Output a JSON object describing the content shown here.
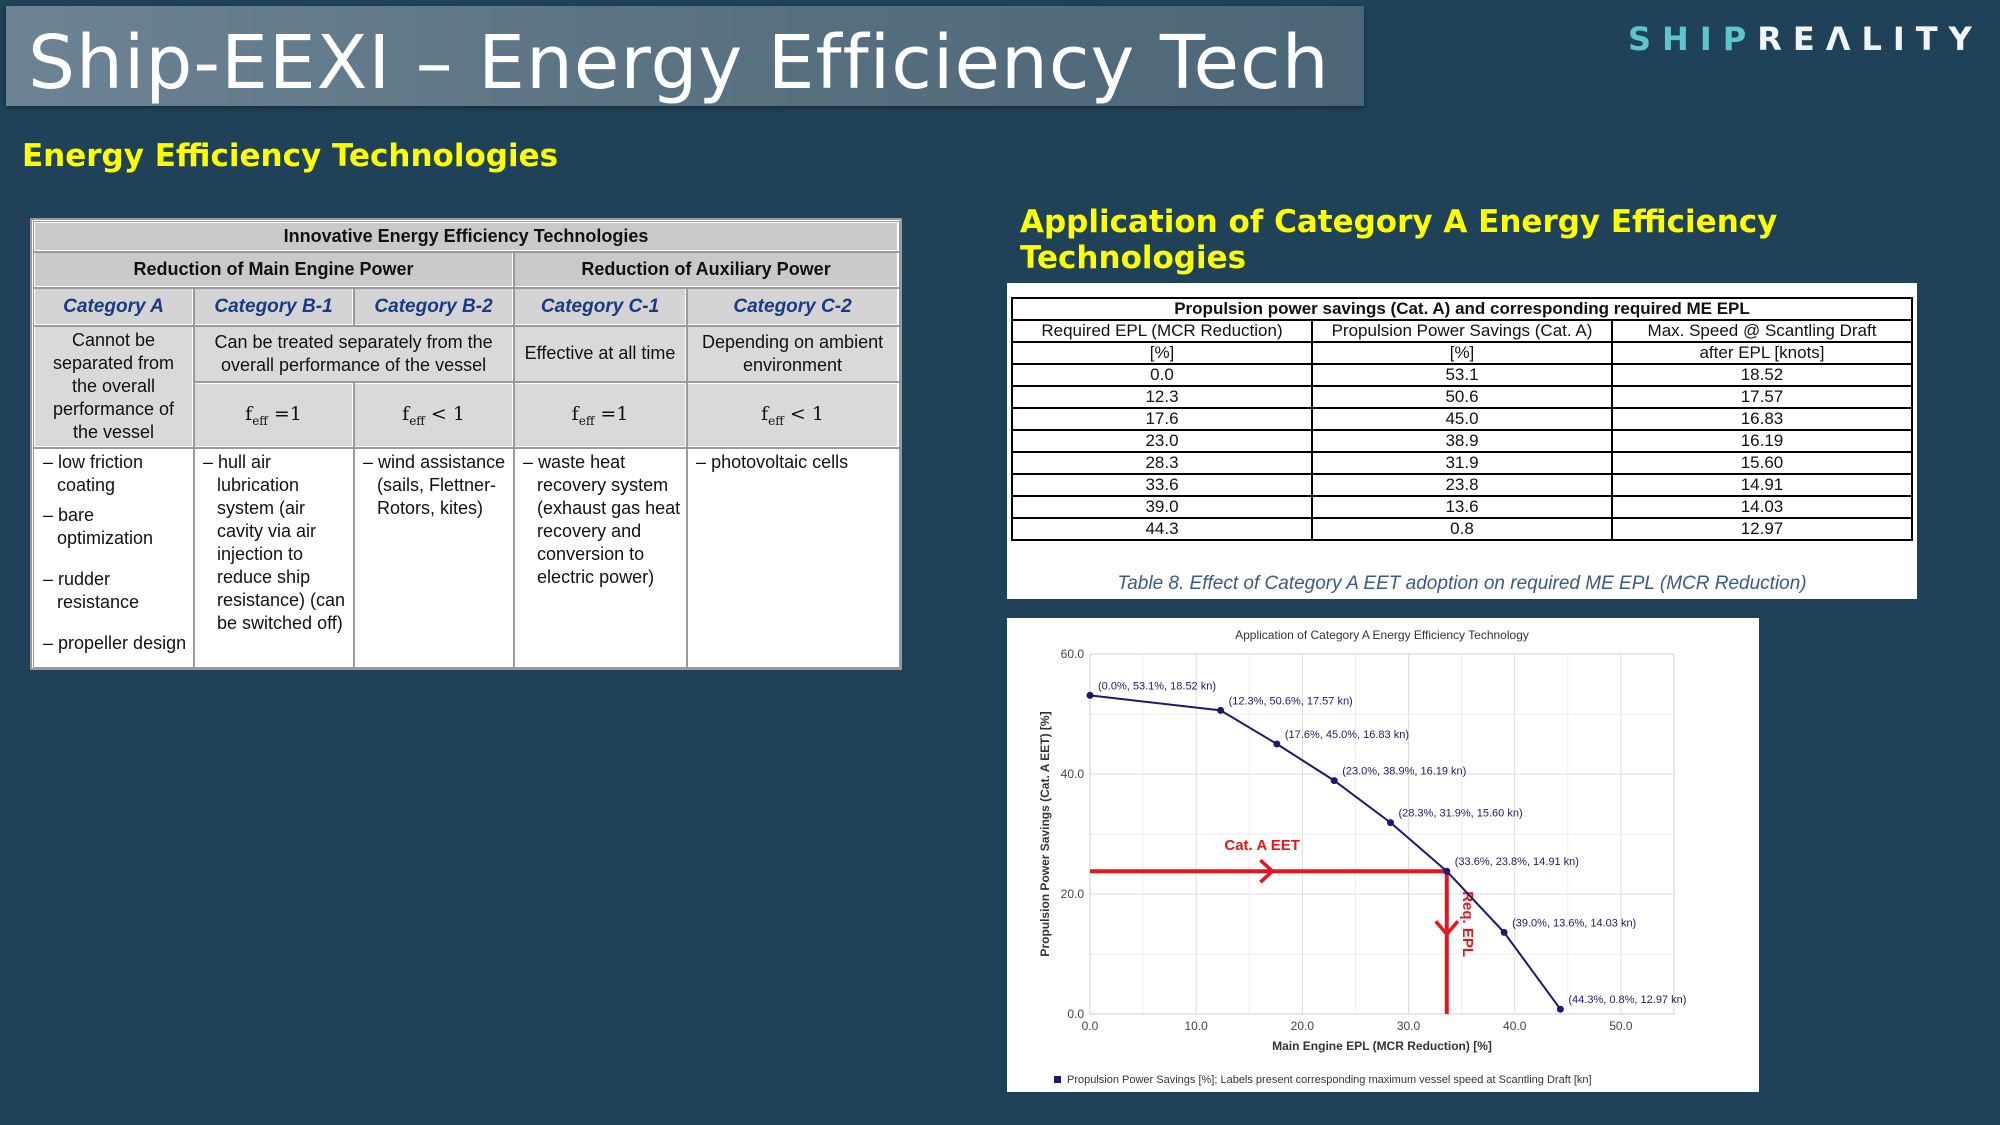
{
  "header": {
    "title": "Ship-EEXI – Energy Efficiency Tech",
    "logo_part1": "SHIP",
    "logo_part2": "REΛLITY"
  },
  "subtitle": "Energy Efficiency Technologies",
  "eet_table": {
    "title": "Innovative Energy Efficiency Technologies",
    "group_main": "Reduction of Main Engine Power",
    "group_aux": "Reduction of Auxiliary Power",
    "categories": [
      "Category A",
      "Category B-1",
      "Category B-2",
      "Category C-1",
      "Category C-2"
    ],
    "desc_a": "Cannot be separated from the overall performance of the vessel",
    "desc_b": "Can be treated separately from the overall performance of the vessel",
    "desc_c1": "Effective at all time",
    "desc_c2": "Depending on ambient environment",
    "feff_b1": "=1",
    "feff_b2": "< 1",
    "feff_c1": "=1",
    "feff_c2": "< 1",
    "feff_base": "f",
    "feff_sub": "eff",
    "items_a": [
      "low friction coating",
      "bare optimization",
      "rudder resistance",
      "propeller design"
    ],
    "items_b1": [
      "hull air lubrication system (air cavity via air injection to reduce ship resistance) (can be switched off)"
    ],
    "items_b2": [
      "wind assistance (sails, Flettner-Rotors, kites)"
    ],
    "items_c1": [
      "waste heat recovery system (exhaust gas heat recovery and conversion to electric power)"
    ],
    "items_c2": [
      "photovoltaic cells"
    ]
  },
  "application_title": "Application of Category A Energy Efficiency Technologies",
  "data_table": {
    "title": "Propulsion power savings (Cat. A) and corresponding required ME EPL",
    "headers": [
      "Required EPL (MCR Reduction)",
      "Propulsion Power Savings (Cat. A)",
      "Max. Speed @ Scantling Draft"
    ],
    "units": [
      "[%]",
      "[%]",
      "after EPL [knots]"
    ],
    "rows": [
      [
        "0.0",
        "53.1",
        "18.52"
      ],
      [
        "12.3",
        "50.6",
        "17.57"
      ],
      [
        "17.6",
        "45.0",
        "16.83"
      ],
      [
        "23.0",
        "38.9",
        "16.19"
      ],
      [
        "28.3",
        "31.9",
        "15.60"
      ],
      [
        "33.6",
        "23.8",
        "14.91"
      ],
      [
        "39.0",
        "13.6",
        "14.03"
      ],
      [
        "44.3",
        "0.8",
        "12.97"
      ]
    ],
    "caption": "Table 8. Effect of Category A EET adoption on required ME EPL (MCR Reduction)"
  },
  "chart_data": {
    "type": "line",
    "title": "Application of Category A Energy Efficiency Technology",
    "xlabel": "Main Engine EPL (MCR Reduction) [%]",
    "ylabel": "Propulsion Power Savings (Cat. A EET) [%]",
    "xlim": [
      0,
      55
    ],
    "ylim": [
      0,
      60
    ],
    "xticks": [
      "0.0",
      "10.0",
      "20.0",
      "30.0",
      "40.0",
      "50.0"
    ],
    "yticks": [
      "0.0",
      "20.0",
      "40.0",
      "60.0"
    ],
    "grid": true,
    "legend": "Propulsion Power Savings [%]; Labels present corresponding maximum vessel speed at Scantling Draft [kn]",
    "series": [
      {
        "x": [
          0.0,
          12.3,
          17.6,
          23.0,
          28.3,
          33.6,
          39.0,
          44.3
        ],
        "y": [
          53.1,
          50.6,
          45.0,
          38.9,
          31.9,
          23.8,
          13.6,
          0.8
        ],
        "labels": [
          "(0.0%, 53.1%, 18.52 kn)",
          "(12.3%, 50.6%, 17.57 kn)",
          "(17.6%, 45.0%, 16.83 kn)",
          "(23.0%, 38.9%, 16.19 kn)",
          "(28.3%, 31.9%, 15.60 kn)",
          "(33.6%, 23.8%, 14.91 kn)",
          "(39.0%, 13.6%, 14.03 kn)",
          "(44.3%, 0.8%, 12.97 kn)"
        ],
        "color": "#1a1a6e"
      }
    ],
    "annotations": [
      {
        "text": "Cat. A EET",
        "color": "#e8141c"
      },
      {
        "text": "Req. EPL",
        "color": "#e8141c"
      }
    ],
    "annotation_point": {
      "x": 33.6,
      "y": 23.8
    }
  }
}
